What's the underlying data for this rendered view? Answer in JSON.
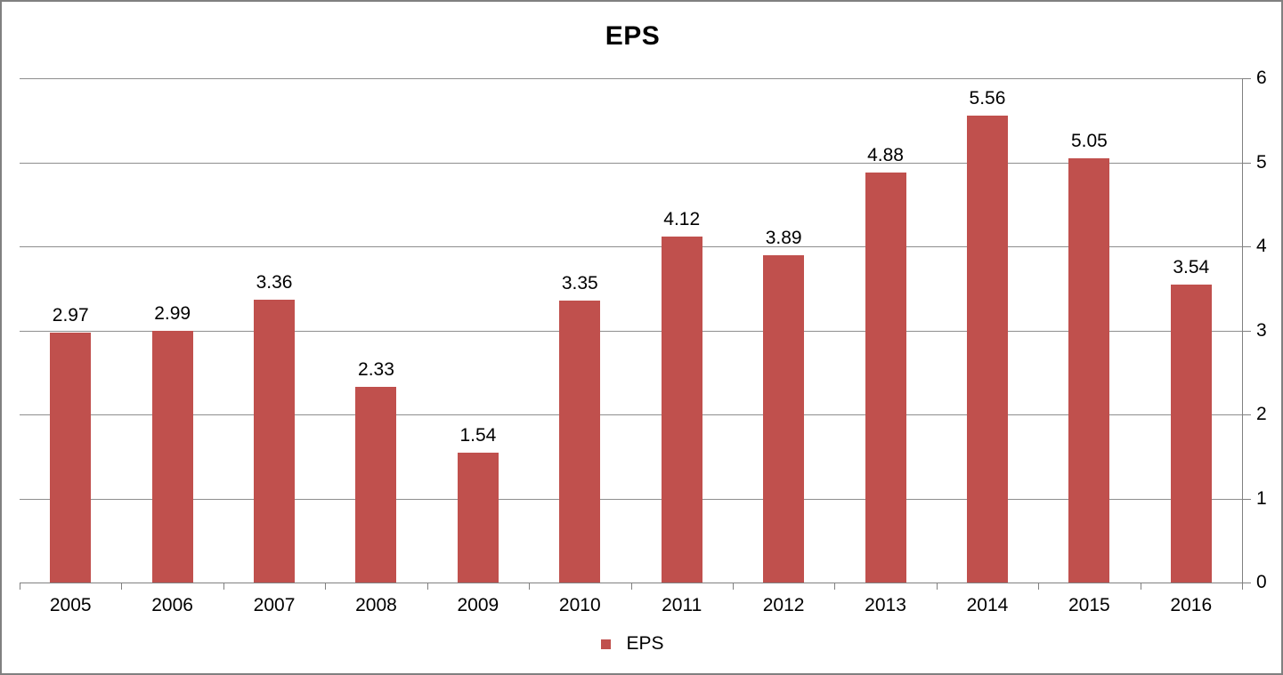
{
  "chart_data": {
    "type": "bar",
    "title": "EPS",
    "categories": [
      "2005",
      "2006",
      "2007",
      "2008",
      "2009",
      "2010",
      "2011",
      "2012",
      "2013",
      "2014",
      "2015",
      "2016"
    ],
    "series": [
      {
        "name": "EPS",
        "values": [
          2.97,
          2.99,
          3.36,
          2.33,
          1.54,
          3.35,
          4.12,
          3.89,
          4.88,
          5.56,
          5.05,
          3.54
        ]
      }
    ],
    "data_labels": [
      "2.97",
      "2.99",
      "3.36",
      "2.33",
      "1.54",
      "3.35",
      "4.12",
      "3.89",
      "4.88",
      "5.56",
      "5.05",
      "3.54"
    ],
    "xlabel": "",
    "ylabel": "",
    "ylim": [
      0,
      6
    ],
    "yticks": [
      "0",
      "1",
      "2",
      "3",
      "4",
      "5",
      "6"
    ],
    "y_axis_side": "right",
    "grid": true,
    "legend_position": "bottom-center",
    "legend_label": "EPS",
    "colors": {
      "bar": "#C0504D",
      "gridline": "#8E8E8E",
      "axis": "#808080",
      "text": "#000000",
      "frame_border": "#808080",
      "background": "#FFFFFF"
    }
  }
}
